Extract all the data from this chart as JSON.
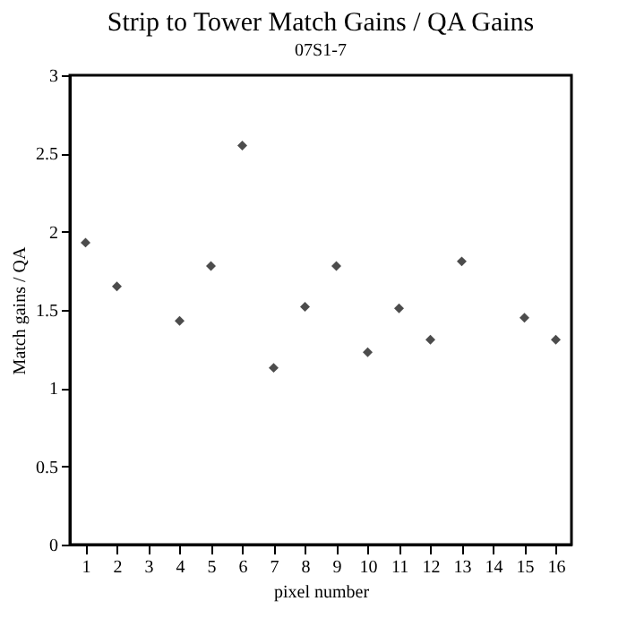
{
  "chart_data": {
    "type": "scatter",
    "title": "Strip to Tower Match Gains / QA Gains",
    "subtitle": "07S1-7",
    "xlabel": "pixel number",
    "ylabel": "Match gains / QA",
    "x": [
      1,
      2,
      4,
      5,
      6,
      7,
      8,
      9,
      10,
      11,
      12,
      13,
      15,
      16
    ],
    "values": [
      1.93,
      1.65,
      1.43,
      1.78,
      2.55,
      1.13,
      1.52,
      1.78,
      1.23,
      1.51,
      1.31,
      1.81,
      1.45,
      1.31
    ],
    "color": "#000000",
    "marker": "diamond",
    "xlim": [
      0.5,
      16.5
    ],
    "xticks": [
      1,
      2,
      3,
      4,
      5,
      6,
      7,
      8,
      9,
      10,
      11,
      12,
      13,
      14,
      15,
      16
    ],
    "ylim": [
      0,
      3
    ],
    "yticks": [
      0,
      0.5,
      1,
      1.5,
      2,
      2.5,
      3
    ],
    "grid": false
  }
}
